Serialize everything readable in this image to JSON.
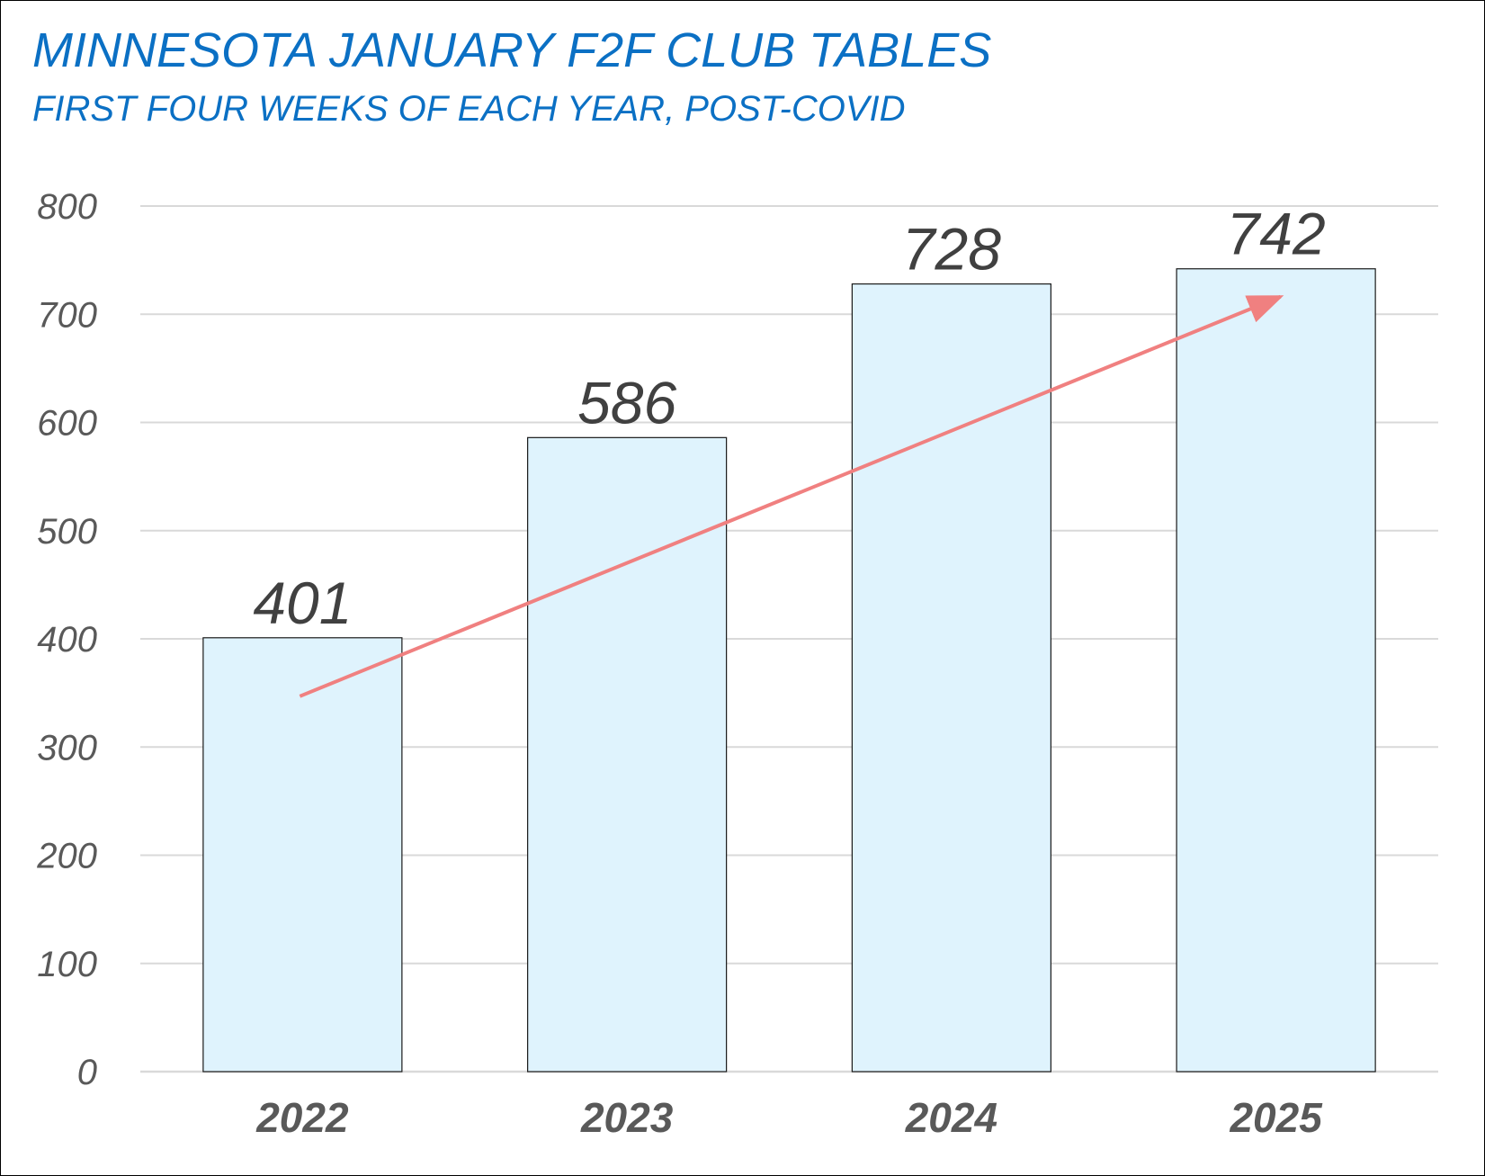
{
  "chart_data": {
    "type": "bar",
    "title": "MINNESOTA JANUARY F2F CLUB TABLES",
    "subtitle": "FIRST FOUR WEEKS OF EACH YEAR, POST-COVID",
    "categories": [
      "2022",
      "2023",
      "2024",
      "2025"
    ],
    "values": [
      401,
      586,
      728,
      742
    ],
    "data_labels": [
      "401",
      "586",
      "728",
      "742"
    ],
    "ylim": [
      0,
      800
    ],
    "yticks": [
      "0",
      "100",
      "200",
      "300",
      "400",
      "500",
      "600",
      "700",
      "800"
    ],
    "grid": true,
    "legend": "none",
    "trend_arrow": true,
    "colors": {
      "bar_fill": "#dff3fd",
      "bar_stroke": "#1a1a1a",
      "title": "#0b70c4",
      "arrow": "#f08080",
      "grid": "#d9d9d9"
    }
  }
}
